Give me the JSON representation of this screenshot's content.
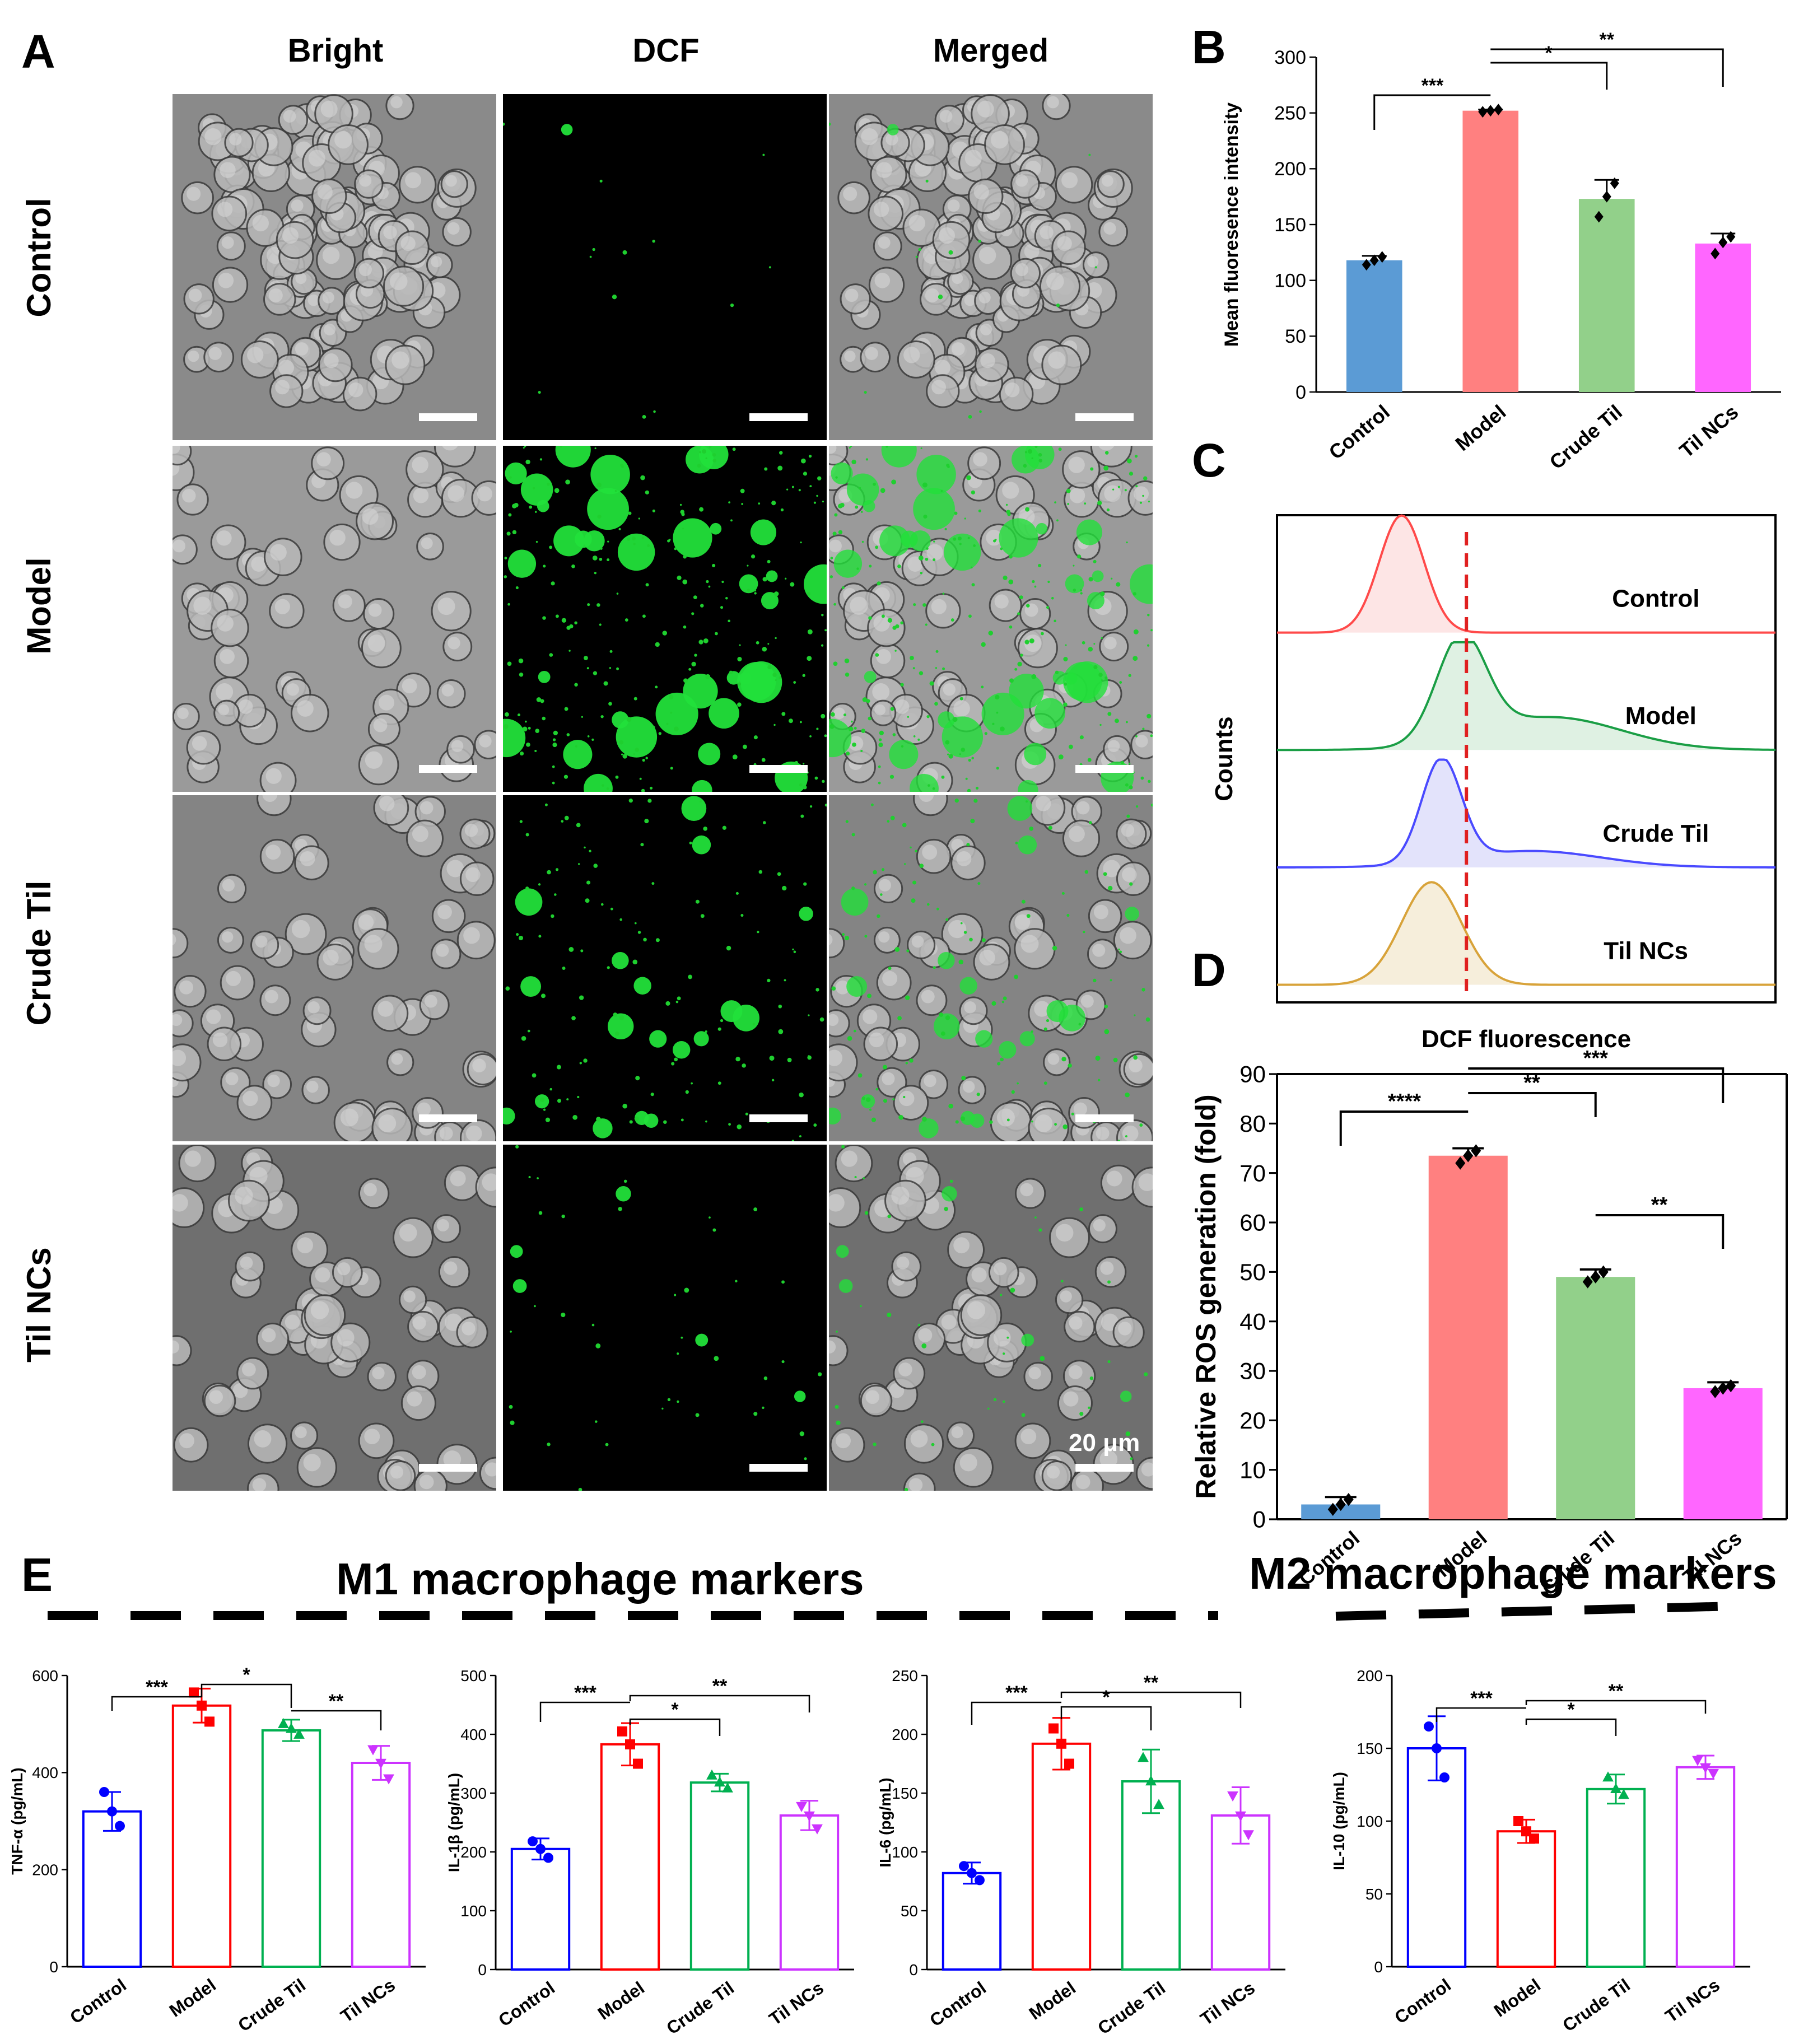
{
  "panel_labels": {
    "A": "A",
    "B": "B",
    "C": "C",
    "D": "D",
    "E": "E"
  },
  "panelA": {
    "columns": [
      "Bright",
      "DCF",
      "Merged"
    ],
    "rows": [
      "Control",
      "Model",
      "Crude Til",
      "Til NCs"
    ],
    "scale_bar_label": "20 μm"
  },
  "panelE": {
    "m1_title": "M1 macrophage markers",
    "m2_title": "M2 macrophage markers"
  },
  "colors": {
    "control": "#5b9bd5",
    "model": "#ff8080",
    "crude": "#92d08a",
    "tilncs": "#ff66ff",
    "line_blue": "#0000ff",
    "line_red": "#ff0000",
    "line_green": "#00b050",
    "line_magenta": "#cc33ff",
    "hist_red": "#ff4a4a",
    "hist_green": "#1a9e45",
    "hist_blue": "#4a4aff",
    "hist_gold": "#d8a33a"
  },
  "chart_data": [
    {
      "id": "B",
      "type": "bar",
      "categories": [
        "Control",
        "Model",
        "Crude Til",
        "Til NCs"
      ],
      "values": [
        118,
        252,
        173,
        133
      ],
      "errors": [
        4,
        1,
        17,
        9
      ],
      "points": [
        [
          114,
          118,
          121
        ],
        [
          251,
          252,
          253
        ],
        [
          157,
          175,
          187
        ],
        [
          124,
          134,
          139
        ]
      ],
      "ylabel": "Mean fluoresence intensity",
      "ylim": [
        0,
        300
      ],
      "yticks": [
        0,
        50,
        100,
        150,
        200,
        250,
        300
      ],
      "significance": [
        {
          "from": 0,
          "to": 1,
          "label": "***"
        },
        {
          "from": 1,
          "to": 2,
          "label": "*"
        },
        {
          "from": 1,
          "to": 3,
          "label": "**"
        }
      ]
    },
    {
      "id": "C",
      "type": "histogram",
      "ylabel": "Counts",
      "xlabel": "DCF fluorescence",
      "series": [
        {
          "name": "Control",
          "peak": 0.25,
          "width": 0.045,
          "tail": 0.0
        },
        {
          "name": "Model",
          "peak": 0.37,
          "width": 0.05,
          "tail": 0.55
        },
        {
          "name": "Crude Til",
          "peak": 0.33,
          "width": 0.04,
          "tail": 0.25
        },
        {
          "name": "Til NCs",
          "peak": 0.31,
          "width": 0.06,
          "tail": 0.0
        }
      ],
      "threshold": 0.38
    },
    {
      "id": "D",
      "type": "bar",
      "categories": [
        "Control",
        "Model",
        "Crude Til",
        "Til NCs"
      ],
      "values": [
        3,
        73.5,
        49,
        26.5
      ],
      "errors": [
        1.5,
        1.5,
        1.5,
        1.2
      ],
      "points": [
        [
          2,
          3,
          4
        ],
        [
          72,
          73.5,
          74.5
        ],
        [
          48,
          49,
          50
        ],
        [
          25.8,
          26.5,
          27
        ]
      ],
      "ylabel": "Relative ROS generation (fold)",
      "ylim": [
        0,
        90
      ],
      "yticks": [
        0,
        10,
        20,
        30,
        40,
        50,
        60,
        70,
        80,
        90
      ],
      "significance": [
        {
          "from": 0,
          "to": 1,
          "label": "****"
        },
        {
          "from": 1,
          "to": 2,
          "label": "**"
        },
        {
          "from": 1,
          "to": 3,
          "label": "***"
        },
        {
          "from": 2,
          "to": 3,
          "label": "**"
        }
      ]
    },
    {
      "id": "E1",
      "type": "bar",
      "categories": [
        "Control",
        "Model",
        "Crude Til",
        "Til NCs"
      ],
      "values": [
        320,
        538,
        487,
        420
      ],
      "errors": [
        40,
        35,
        22,
        35
      ],
      "points": [
        [
          360,
          320,
          290
        ],
        [
          565,
          538,
          505
        ],
        [
          500,
          490,
          478
        ],
        [
          448,
          420,
          388
        ]
      ],
      "ylabel": "TNF-α (pg/mL)",
      "ylim": [
        0,
        600
      ],
      "yticks": [
        0,
        200,
        400,
        600
      ],
      "significance": [
        {
          "from": 0,
          "to": 1,
          "label": "***"
        },
        {
          "from": 1,
          "to": 2,
          "label": "*"
        },
        {
          "from": 2,
          "to": 3,
          "label": "**"
        }
      ]
    },
    {
      "id": "E2",
      "type": "bar",
      "categories": [
        "Control",
        "Model",
        "Crude Til",
        "Til NCs"
      ],
      "values": [
        205,
        383,
        318,
        262
      ],
      "errors": [
        18,
        36,
        15,
        25
      ],
      "points": [
        [
          218,
          205,
          190
        ],
        [
          405,
          383,
          350
        ],
        [
          330,
          318,
          308
        ],
        [
          278,
          262,
          240
        ]
      ],
      "ylabel": "IL-1β (pg/mL)",
      "ylim": [
        0,
        500
      ],
      "yticks": [
        0,
        100,
        200,
        300,
        400,
        500
      ],
      "significance": [
        {
          "from": 0,
          "to": 1,
          "label": "***"
        },
        {
          "from": 1,
          "to": 2,
          "label": "*"
        },
        {
          "from": 1,
          "to": 3,
          "label": "**"
        }
      ]
    },
    {
      "id": "E3",
      "type": "bar",
      "categories": [
        "Control",
        "Model",
        "Crude Til",
        "Til NCs"
      ],
      "values": [
        82,
        192,
        160,
        131
      ],
      "errors": [
        9,
        22,
        27,
        24
      ],
      "points": [
        [
          88,
          82,
          76
        ],
        [
          205,
          192,
          175
        ],
        [
          180,
          160,
          140
        ],
        [
          148,
          131,
          115
        ]
      ],
      "ylabel": "IL-6 (pg/mL)",
      "ylim": [
        0,
        250
      ],
      "yticks": [
        0,
        50,
        100,
        150,
        200,
        250
      ],
      "significance": [
        {
          "from": 0,
          "to": 1,
          "label": "***"
        },
        {
          "from": 1,
          "to": 2,
          "label": "*"
        },
        {
          "from": 1,
          "to": 3,
          "label": "**"
        }
      ]
    },
    {
      "id": "E4",
      "type": "bar",
      "categories": [
        "Control",
        "Model",
        "Crude Til",
        "Til NCs"
      ],
      "values": [
        150,
        93,
        122,
        137
      ],
      "errors": [
        22,
        8,
        10,
        8
      ],
      "points": [
        [
          165,
          150,
          130
        ],
        [
          100,
          93,
          88
        ],
        [
          130,
          122,
          118
        ],
        [
          142,
          137,
          133
        ]
      ],
      "ylabel": "IL-10 (pg/mL)",
      "ylim": [
        0,
        200
      ],
      "yticks": [
        0,
        50,
        100,
        150,
        200
      ],
      "significance": [
        {
          "from": 0,
          "to": 1,
          "label": "***"
        },
        {
          "from": 1,
          "to": 2,
          "label": "*"
        },
        {
          "from": 1,
          "to": 3,
          "label": "**"
        }
      ]
    }
  ]
}
